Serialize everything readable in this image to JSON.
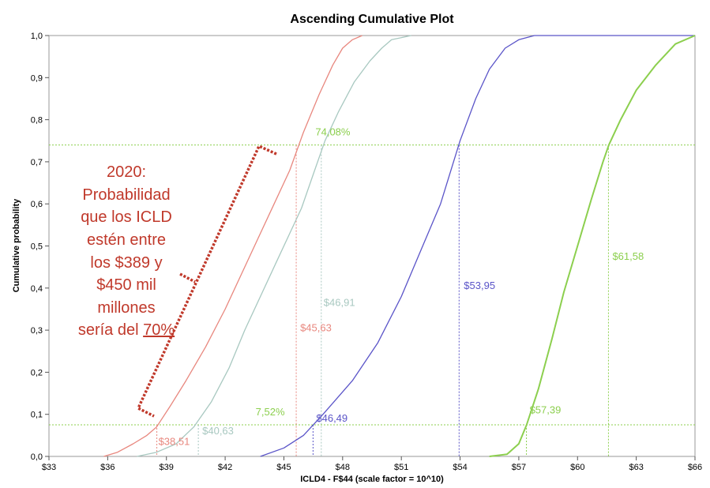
{
  "chart_data": {
    "type": "line",
    "title": "Ascending Cumulative Plot",
    "xlabel": "ICLD4 - F$44 (scale factor = 10^10)",
    "ylabel": "Cumulative  probability",
    "xlim": [
      33,
      66
    ],
    "ylim": [
      0,
      1
    ],
    "x_ticks": [
      33,
      36,
      39,
      42,
      45,
      48,
      51,
      54,
      57,
      60,
      63,
      66
    ],
    "x_tick_labels": [
      "$33",
      "$36",
      "$39",
      "$42",
      "$45",
      "$48",
      "$51",
      "$54",
      "$57",
      "$60",
      "$63",
      "$66"
    ],
    "y_ticks": [
      0,
      0.1,
      0.2,
      0.3,
      0.4,
      0.5,
      0.6,
      0.7,
      0.8,
      0.9,
      1.0
    ],
    "y_tick_labels": [
      "0,0",
      "0,1",
      "0,2",
      "0,3",
      "0,4",
      "0,5",
      "0,6",
      "0,7",
      "0,8",
      "0,9",
      "1,0"
    ],
    "grid": false,
    "colors": {
      "red": "#e8877e",
      "teal": "#a8c8c0",
      "blue": "#5a54c8",
      "green": "#8ccf4e"
    },
    "series": [
      {
        "color": "#e8877e",
        "points": [
          [
            35.8,
            0
          ],
          [
            36.5,
            0.01
          ],
          [
            37.3,
            0.03
          ],
          [
            38.0,
            0.05
          ],
          [
            38.5,
            0.07
          ],
          [
            39.2,
            0.12
          ],
          [
            40.0,
            0.18
          ],
          [
            41.0,
            0.26
          ],
          [
            42.0,
            0.35
          ],
          [
            43.0,
            0.45
          ],
          [
            43.8,
            0.53
          ],
          [
            44.5,
            0.6
          ],
          [
            45.3,
            0.68
          ],
          [
            46.0,
            0.77
          ],
          [
            46.8,
            0.86
          ],
          [
            47.5,
            0.93
          ],
          [
            48.0,
            0.97
          ],
          [
            48.5,
            0.99
          ],
          [
            49.0,
            1.0
          ]
        ]
      },
      {
        "color": "#a8c8c0",
        "points": [
          [
            37.5,
            0
          ],
          [
            38.5,
            0.01
          ],
          [
            39.5,
            0.03
          ],
          [
            40.4,
            0.07
          ],
          [
            41.3,
            0.13
          ],
          [
            42.2,
            0.21
          ],
          [
            43.0,
            0.3
          ],
          [
            43.8,
            0.38
          ],
          [
            44.6,
            0.46
          ],
          [
            45.3,
            0.53
          ],
          [
            45.9,
            0.59
          ],
          [
            46.5,
            0.67
          ],
          [
            47.1,
            0.75
          ],
          [
            47.8,
            0.82
          ],
          [
            48.6,
            0.89
          ],
          [
            49.4,
            0.94
          ],
          [
            50.0,
            0.97
          ],
          [
            50.5,
            0.99
          ],
          [
            51.5,
            1.0
          ]
        ]
      },
      {
        "color": "#5a54c8",
        "points": [
          [
            43.8,
            0
          ],
          [
            45.0,
            0.02
          ],
          [
            46.0,
            0.05
          ],
          [
            47.0,
            0.1
          ],
          [
            48.5,
            0.18
          ],
          [
            49.8,
            0.27
          ],
          [
            51.0,
            0.38
          ],
          [
            52.0,
            0.49
          ],
          [
            53.0,
            0.6
          ],
          [
            54.0,
            0.75
          ],
          [
            54.8,
            0.85
          ],
          [
            55.5,
            0.92
          ],
          [
            56.3,
            0.97
          ],
          [
            57.0,
            0.99
          ],
          [
            57.8,
            1.0
          ],
          [
            66.0,
            1.0
          ]
        ]
      },
      {
        "color": "#8ccf4e",
        "points": [
          [
            55.5,
            0
          ],
          [
            56.4,
            0.005
          ],
          [
            57.0,
            0.03
          ],
          [
            57.4,
            0.075
          ],
          [
            58.0,
            0.16
          ],
          [
            58.7,
            0.28
          ],
          [
            59.3,
            0.39
          ],
          [
            60.0,
            0.5
          ],
          [
            60.7,
            0.61
          ],
          [
            61.3,
            0.7
          ],
          [
            61.6,
            0.74
          ],
          [
            62.2,
            0.8
          ],
          [
            63.0,
            0.87
          ],
          [
            64.0,
            0.93
          ],
          [
            65.0,
            0.98
          ],
          [
            66.0,
            1.0
          ]
        ]
      }
    ],
    "marker_lines": [
      {
        "x": 38.51,
        "y": 0.075,
        "color": "#e8877e",
        "label": "$38,51"
      },
      {
        "x": 45.63,
        "y": 0.74,
        "color": "#e8877e",
        "label": "$45,63"
      },
      {
        "x": 40.63,
        "y": 0.075,
        "color": "#a8c8c0",
        "label": "$40,63"
      },
      {
        "x": 46.91,
        "y": 0.74,
        "color": "#a8c8c0",
        "label": "$46,91"
      },
      {
        "x": 46.49,
        "y": 0.075,
        "color": "#5a54c8",
        "label": "$46,49"
      },
      {
        "x": 53.95,
        "y": 0.74,
        "color": "#5a54c8",
        "label": "$53,95"
      },
      {
        "x": 57.39,
        "y": 0.075,
        "color": "#8ccf4e",
        "label": "$57,39"
      },
      {
        "x": 61.58,
        "y": 0.74,
        "color": "#8ccf4e",
        "label": "$61,58"
      }
    ],
    "hlines": [
      {
        "y": 0.74,
        "color": "#8ccf4e",
        "label": "74,08%"
      },
      {
        "y": 0.075,
        "color": "#8ccf4e",
        "label": "7,52%"
      }
    ]
  },
  "annotation": {
    "lines": [
      "2020:",
      "Probabilidad",
      "que los ICLD",
      "estén entre",
      "los $389 y",
      "$450 mil",
      "millones"
    ],
    "last_line_prefix": "sería del ",
    "last_line_highlight": "70%",
    "color": "#c0392b"
  }
}
